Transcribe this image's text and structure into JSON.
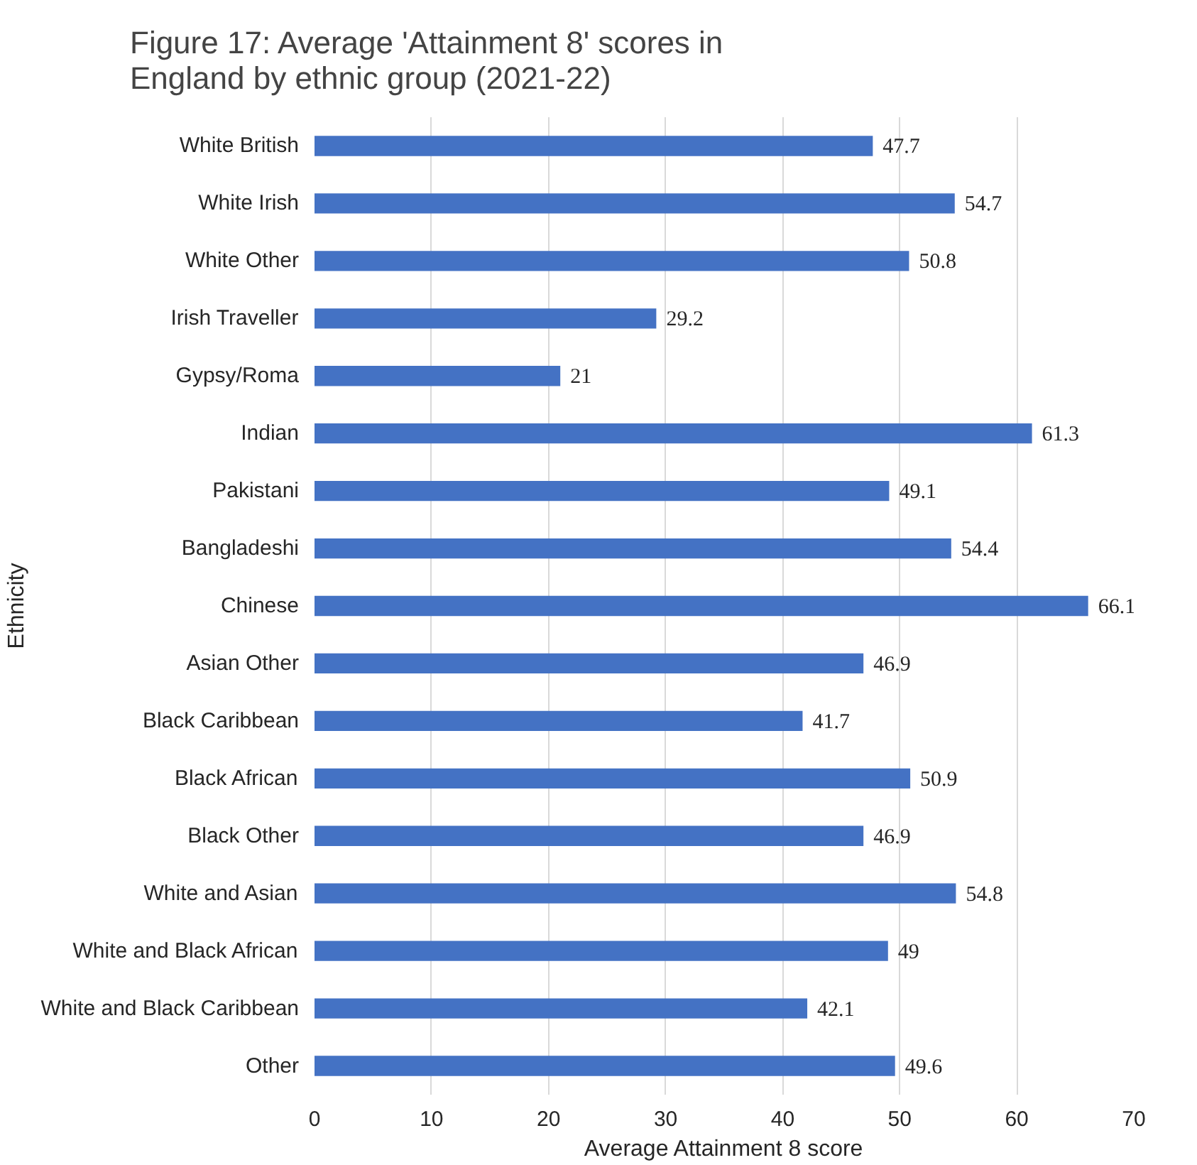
{
  "chart_data": {
    "type": "bar",
    "orientation": "horizontal",
    "title": "Figure 17: Average 'Attainment 8' scores in England by ethnic group (2021-22)",
    "xlabel": "Average Attainment 8 score",
    "ylabel": "Ethnicity",
    "categories": [
      "White British",
      "White Irish",
      "White Other",
      "Irish Traveller",
      "Gypsy/Roma",
      "Indian",
      "Pakistani",
      "Bangladeshi",
      "Chinese",
      "Asian Other",
      "Black Caribbean",
      "Black African",
      "Black Other",
      "White and Asian",
      "White and Black African",
      "White and Black Caribbean",
      "Other"
    ],
    "values": [
      47.7,
      54.7,
      50.8,
      29.2,
      21,
      61.3,
      49.1,
      54.4,
      66.1,
      46.9,
      41.7,
      50.9,
      46.9,
      54.8,
      49,
      42.1,
      49.6
    ],
    "color": "#4472c4",
    "xlim": [
      0,
      70
    ],
    "xticks": [
      0,
      10,
      20,
      30,
      40,
      50,
      60,
      70
    ],
    "grid": "x",
    "data_labels": true
  }
}
